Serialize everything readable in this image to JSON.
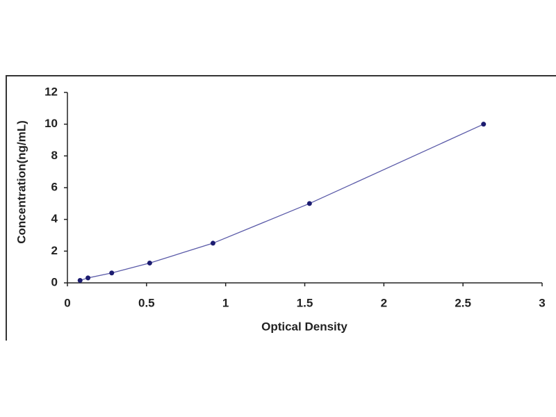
{
  "chart_data": {
    "type": "scatter",
    "x_label": "Optical Density",
    "y_label": "Concentration(ng/mL)",
    "x": [
      0.08,
      0.13,
      0.28,
      0.52,
      0.92,
      1.53,
      2.63
    ],
    "values": [
      0.156,
      0.312,
      0.625,
      1.25,
      2.5,
      5,
      10
    ],
    "color": "#1c1c70",
    "line_color": "#5a5aa8",
    "xlim": [
      0,
      3
    ],
    "xticks": [
      0,
      0.5,
      1,
      1.5,
      2,
      2.5,
      3
    ],
    "ylim": [
      0,
      12
    ],
    "yticks": [
      0,
      2,
      4,
      6,
      8,
      10,
      12
    ]
  }
}
